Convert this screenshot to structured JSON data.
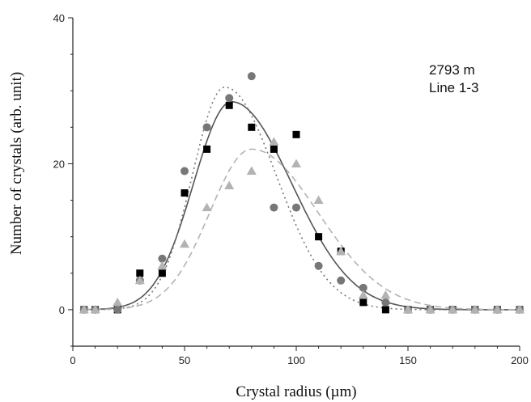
{
  "chart_data": {
    "type": "scatter",
    "title": "",
    "xlabel": "Crystal radius (µm)",
    "ylabel": "Number of crystals (arb. unit)",
    "xlim": [
      0,
      200
    ],
    "ylim": [
      -5,
      40
    ],
    "xticks": [
      0,
      50,
      100,
      150,
      200
    ],
    "yticks": [
      0,
      20,
      40
    ],
    "grid": false,
    "legend": "none",
    "annotation": [
      "2793 m",
      "Line 1-3"
    ],
    "series": [
      {
        "marker": "square",
        "color": "#000000",
        "x": [
          5,
          10,
          20,
          30,
          40,
          50,
          60,
          70,
          80,
          90,
          100,
          110,
          120,
          130,
          140,
          150,
          160,
          170,
          180,
          190,
          200
        ],
        "y": [
          0,
          0,
          0,
          5,
          5,
          16,
          22,
          28,
          25,
          22,
          24,
          10,
          8,
          1,
          0,
          0,
          0,
          0,
          0,
          0,
          0
        ]
      },
      {
        "marker": "circle",
        "color": "#777777",
        "x": [
          5,
          10,
          20,
          30,
          40,
          50,
          60,
          70,
          80,
          90,
          100,
          110,
          120,
          130,
          140,
          150,
          160,
          170,
          180,
          190,
          200
        ],
        "y": [
          0,
          0,
          0,
          4,
          7,
          19,
          25,
          29,
          32,
          14,
          14,
          6,
          4,
          3,
          1,
          0,
          0,
          0,
          0,
          0,
          0
        ]
      },
      {
        "marker": "triangle",
        "color": "#b3b3b3",
        "x": [
          5,
          10,
          20,
          30,
          40,
          50,
          60,
          70,
          80,
          90,
          100,
          110,
          120,
          130,
          140,
          150,
          160,
          170,
          180,
          190,
          200
        ],
        "y": [
          0,
          0,
          1,
          4,
          6,
          9,
          14,
          17,
          19,
          23,
          20,
          15,
          8,
          2,
          2,
          0,
          0,
          0,
          0,
          0,
          0
        ]
      }
    ],
    "fits": [
      {
        "style": "solid",
        "color": "#555555",
        "peak_x": 71,
        "peak_y": 28.5
      },
      {
        "style": "dotted",
        "color": "#777777",
        "peak_x": 68,
        "peak_y": 30.5
      },
      {
        "style": "dashed",
        "color": "#b3b3b3",
        "peak_x": 80,
        "peak_y": 22
      }
    ]
  }
}
